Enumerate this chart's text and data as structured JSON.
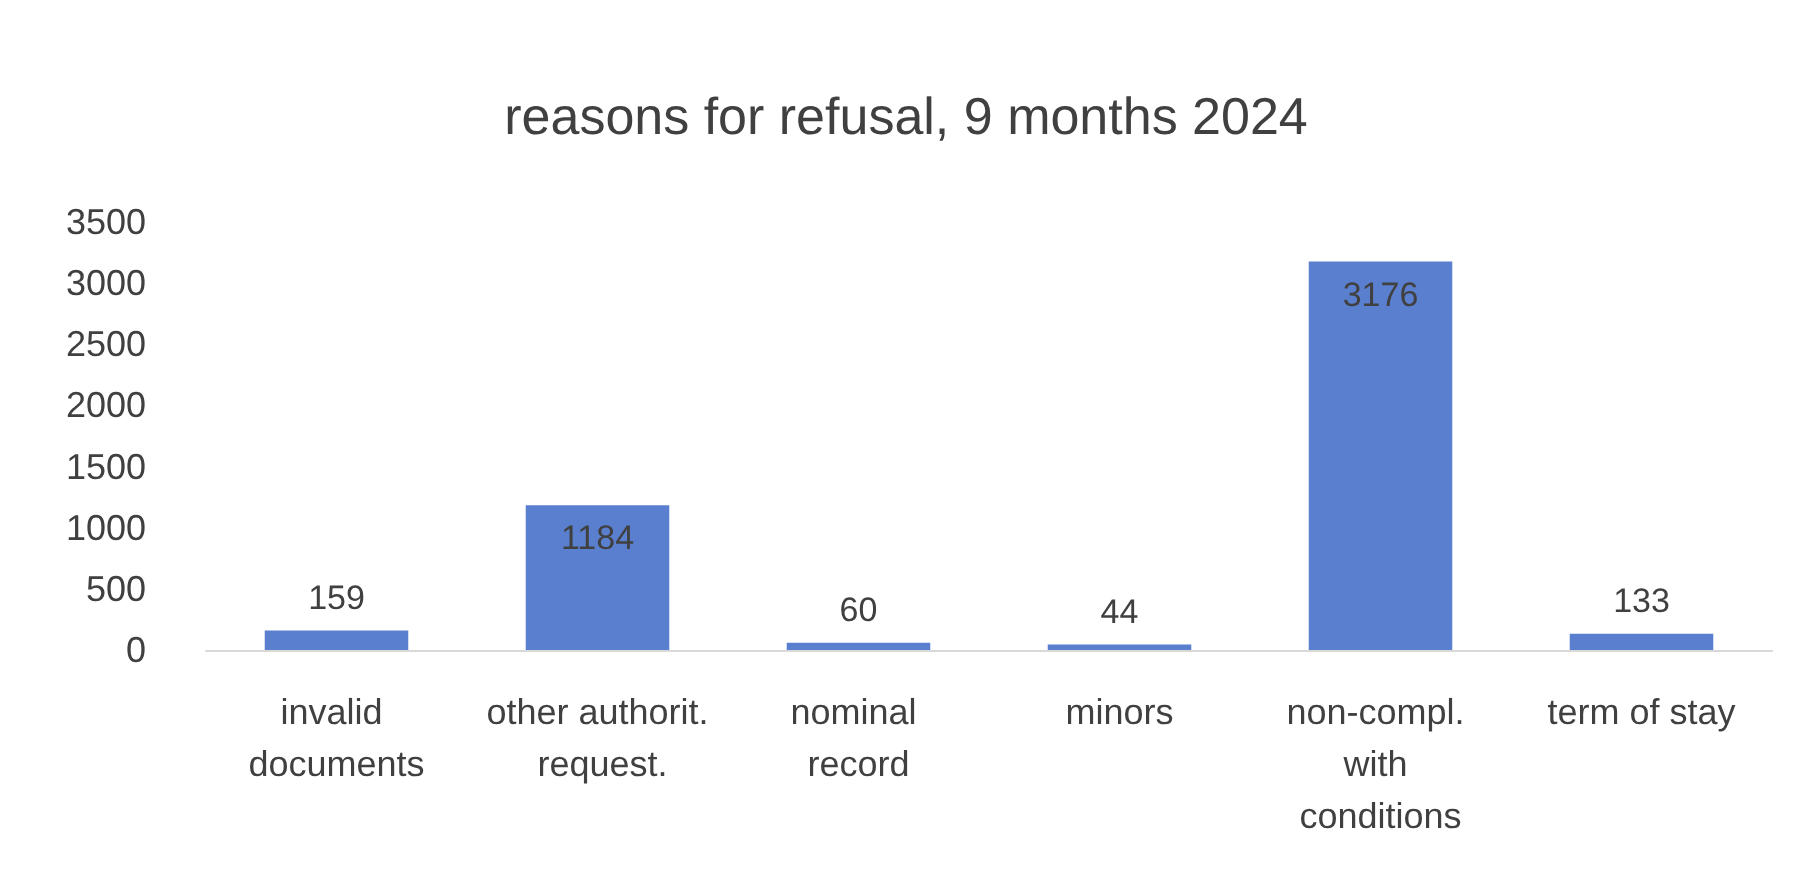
{
  "chart_data": {
    "type": "bar",
    "title": "reasons for refusal, 9 months 2024",
    "categories": [
      "invalid documents",
      "other authorit. request.",
      "nominal record",
      "minors",
      "non-compl. with conditions",
      "term of stay"
    ],
    "values": [
      159,
      1184,
      60,
      44,
      3176,
      133
    ],
    "color": "#5a7fcf",
    "ylim": [
      0,
      3500
    ],
    "yticks": [
      0,
      500,
      1000,
      1500,
      2000,
      2500,
      3000,
      3500
    ],
    "grid": false,
    "data_labels": true
  }
}
